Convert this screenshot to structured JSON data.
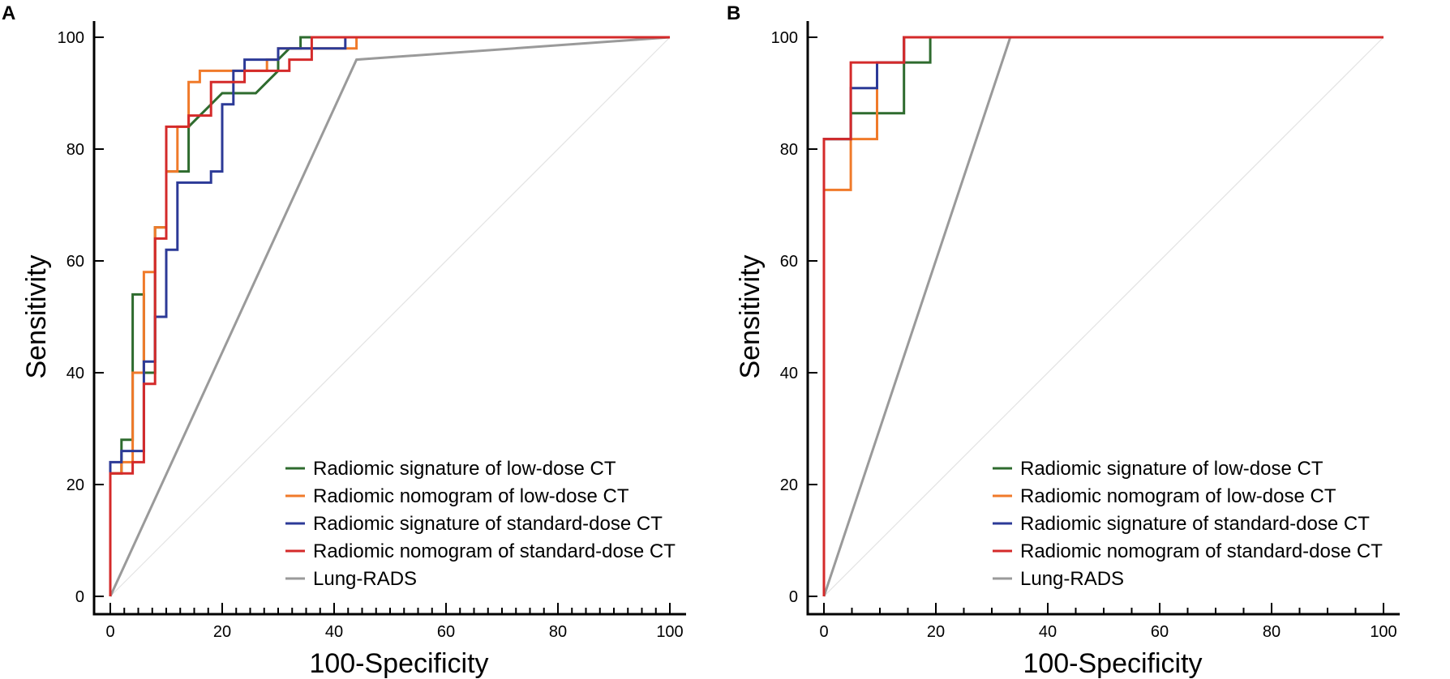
{
  "chart_data": [
    {
      "panel": "A",
      "type": "line",
      "xlabel": "100-Specificity",
      "ylabel": "Sensitivity",
      "xlim": [
        0,
        100
      ],
      "ylim": [
        0,
        100
      ],
      "xticks": [
        0,
        20,
        40,
        60,
        80,
        100
      ],
      "yticks": [
        0,
        20,
        40,
        60,
        80,
        100
      ],
      "minor_xticks": [
        2.5,
        5,
        7.5,
        10,
        12.5,
        15,
        17.5,
        22.5,
        25,
        27.5,
        30,
        32.5,
        35,
        37.5,
        42.5,
        45,
        47.5,
        50,
        52.5,
        55,
        57.5,
        62.5,
        65,
        67.5,
        70,
        72.5,
        75,
        77.5,
        82.5,
        85,
        87.5,
        90,
        92.5,
        95,
        97.5
      ],
      "reference_line": [
        [
          0,
          0
        ],
        [
          100,
          100
        ]
      ],
      "series": [
        {
          "name": "Radiomic signature of low-dose CT",
          "color": "#2e6b2e",
          "x": [
            0,
            0,
            2,
            2,
            4,
            4,
            6,
            6,
            8,
            8,
            10,
            10,
            14,
            14,
            16,
            18,
            20,
            22,
            26,
            28,
            28,
            30,
            30,
            32,
            34,
            34,
            100
          ],
          "y": [
            0,
            22,
            22,
            28,
            28,
            54,
            54,
            40,
            40,
            66,
            66,
            76,
            76,
            84,
            86,
            88,
            90,
            90,
            90,
            92,
            92,
            94,
            96,
            98,
            98,
            100,
            100
          ]
        },
        {
          "name": "Radiomic nomogram of low-dose CT",
          "color": "#f07a2a",
          "x": [
            0,
            0,
            2,
            2,
            4,
            4,
            6,
            6,
            8,
            8,
            10,
            10,
            12,
            12,
            14,
            14,
            16,
            16,
            20,
            20,
            28,
            28,
            30,
            30,
            44,
            44,
            100
          ],
          "y": [
            0,
            22,
            22,
            24,
            24,
            40,
            40,
            58,
            58,
            66,
            66,
            76,
            76,
            84,
            84,
            92,
            92,
            94,
            94,
            94,
            94,
            96,
            96,
            98,
            98,
            100,
            100
          ]
        },
        {
          "name": "Radiomic signature of standard-dose CT",
          "color": "#2c3a97",
          "x": [
            0,
            0,
            2,
            2,
            6,
            6,
            8,
            8,
            10,
            10,
            12,
            12,
            18,
            18,
            20,
            20,
            22,
            22,
            24,
            24,
            30,
            30,
            32,
            32,
            36,
            36,
            42,
            42,
            100
          ],
          "y": [
            0,
            24,
            24,
            26,
            26,
            42,
            42,
            50,
            50,
            62,
            62,
            74,
            74,
            76,
            76,
            88,
            88,
            94,
            94,
            96,
            96,
            98,
            98,
            98,
            98,
            98,
            98,
            100,
            100
          ]
        },
        {
          "name": "Radiomic nomogram of standard-dose CT",
          "color": "#d42a2a",
          "x": [
            0,
            0,
            4,
            4,
            6,
            6,
            8,
            8,
            10,
            10,
            14,
            14,
            18,
            18,
            20,
            20,
            24,
            24,
            28,
            28,
            32,
            32,
            36,
            36,
            100
          ],
          "y": [
            0,
            22,
            22,
            24,
            24,
            38,
            38,
            64,
            64,
            84,
            84,
            86,
            86,
            92,
            92,
            92,
            92,
            94,
            94,
            94,
            94,
            96,
            96,
            100,
            100
          ]
        },
        {
          "name": "Lung-RADS",
          "color": "#9a9a9a",
          "x": [
            0,
            44,
            100
          ],
          "y": [
            0,
            96,
            100
          ]
        }
      ]
    },
    {
      "panel": "B",
      "type": "line",
      "xlabel": "100-Specificity",
      "ylabel": "Sensitivity",
      "xlim": [
        0,
        100
      ],
      "ylim": [
        0,
        100
      ],
      "xticks": [
        0,
        20,
        40,
        60,
        80,
        100
      ],
      "yticks": [
        0,
        20,
        40,
        60,
        80,
        100
      ],
      "minor_xticks": [
        5,
        10,
        15,
        25,
        30,
        35,
        45,
        50,
        55,
        65,
        70,
        75,
        85,
        90,
        95
      ],
      "reference_line": [
        [
          0,
          0
        ],
        [
          100,
          100
        ]
      ],
      "series": [
        {
          "name": "Radiomic signature of low-dose CT",
          "color": "#2e6b2e",
          "x": [
            0,
            0,
            4.8,
            4.8,
            14.3,
            14.3,
            19,
            19,
            100
          ],
          "y": [
            0,
            81.8,
            81.8,
            86.4,
            86.4,
            95.5,
            95.5,
            100,
            100
          ]
        },
        {
          "name": "Radiomic nomogram of low-dose CT",
          "color": "#f07a2a",
          "x": [
            0,
            0,
            4.8,
            4.8,
            9.5,
            9.5,
            14.3,
            14.3,
            100
          ],
          "y": [
            0,
            72.7,
            72.7,
            81.8,
            81.8,
            95.5,
            95.5,
            100,
            100
          ]
        },
        {
          "name": "Radiomic signature of standard-dose CT",
          "color": "#2c3a97",
          "x": [
            0,
            0,
            4.8,
            4.8,
            9.5,
            9.5,
            14.3,
            14.3,
            100
          ],
          "y": [
            0,
            81.8,
            81.8,
            90.9,
            90.9,
            95.5,
            95.5,
            100,
            100
          ]
        },
        {
          "name": "Radiomic nomogram of standard-dose CT",
          "color": "#d42a2a",
          "x": [
            0,
            0,
            4.8,
            4.8,
            14.3,
            14.3,
            100
          ],
          "y": [
            0,
            81.8,
            81.8,
            95.5,
            95.5,
            100,
            100
          ]
        },
        {
          "name": "Lung-RADS",
          "color": "#9a9a9a",
          "x": [
            0,
            33.3,
            100
          ],
          "y": [
            0,
            100,
            100
          ]
        }
      ]
    }
  ]
}
